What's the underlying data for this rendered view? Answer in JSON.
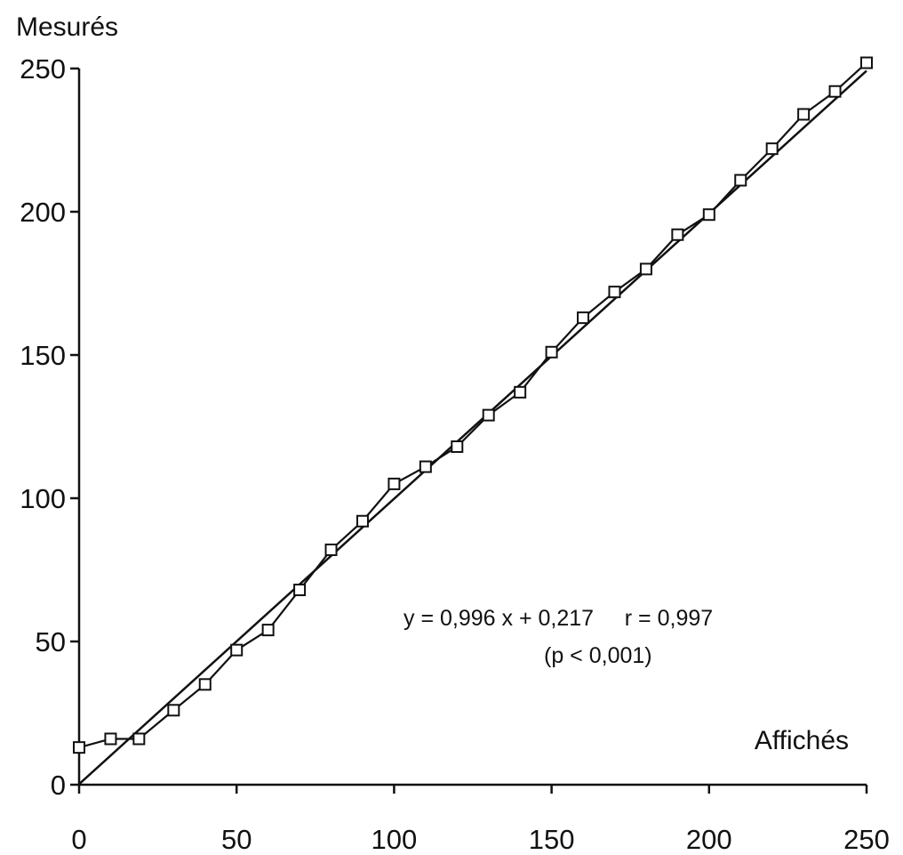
{
  "chart_data": {
    "type": "scatter",
    "title": "",
    "ylabel": "Mesurés",
    "xlabel": "Affichés",
    "xlim": [
      0,
      250
    ],
    "ylim": [
      0,
      250
    ],
    "xticks": [
      "0",
      "50",
      "100",
      "150",
      "200",
      "250"
    ],
    "yticks": [
      "0",
      "50",
      "100",
      "150",
      "200",
      "250"
    ],
    "grid": false,
    "series": [
      {
        "marker": "square",
        "connected": true,
        "x": [
          0,
          10,
          19,
          30,
          40,
          50,
          60,
          70,
          80,
          90,
          100,
          110,
          120,
          130,
          140,
          150,
          160,
          170,
          180,
          190,
          200,
          210,
          220,
          230,
          240,
          250
        ],
        "y": [
          13,
          16,
          16,
          26,
          35,
          47,
          54,
          68,
          82,
          92,
          105,
          111,
          118,
          129,
          137,
          151,
          163,
          172,
          180,
          192,
          199,
          211,
          222,
          234,
          242,
          252
        ]
      }
    ],
    "regression": {
      "slope": 0.996,
      "intercept": 0.217,
      "r": 0.997,
      "x_range": [
        0,
        250
      ]
    },
    "annotations": {
      "equation": "y = 0,996 x + 0,217     r = 0,997",
      "pvalue": "(p < 0,001)"
    },
    "colors": {
      "ink": "#111111",
      "background": "#ffffff"
    }
  }
}
